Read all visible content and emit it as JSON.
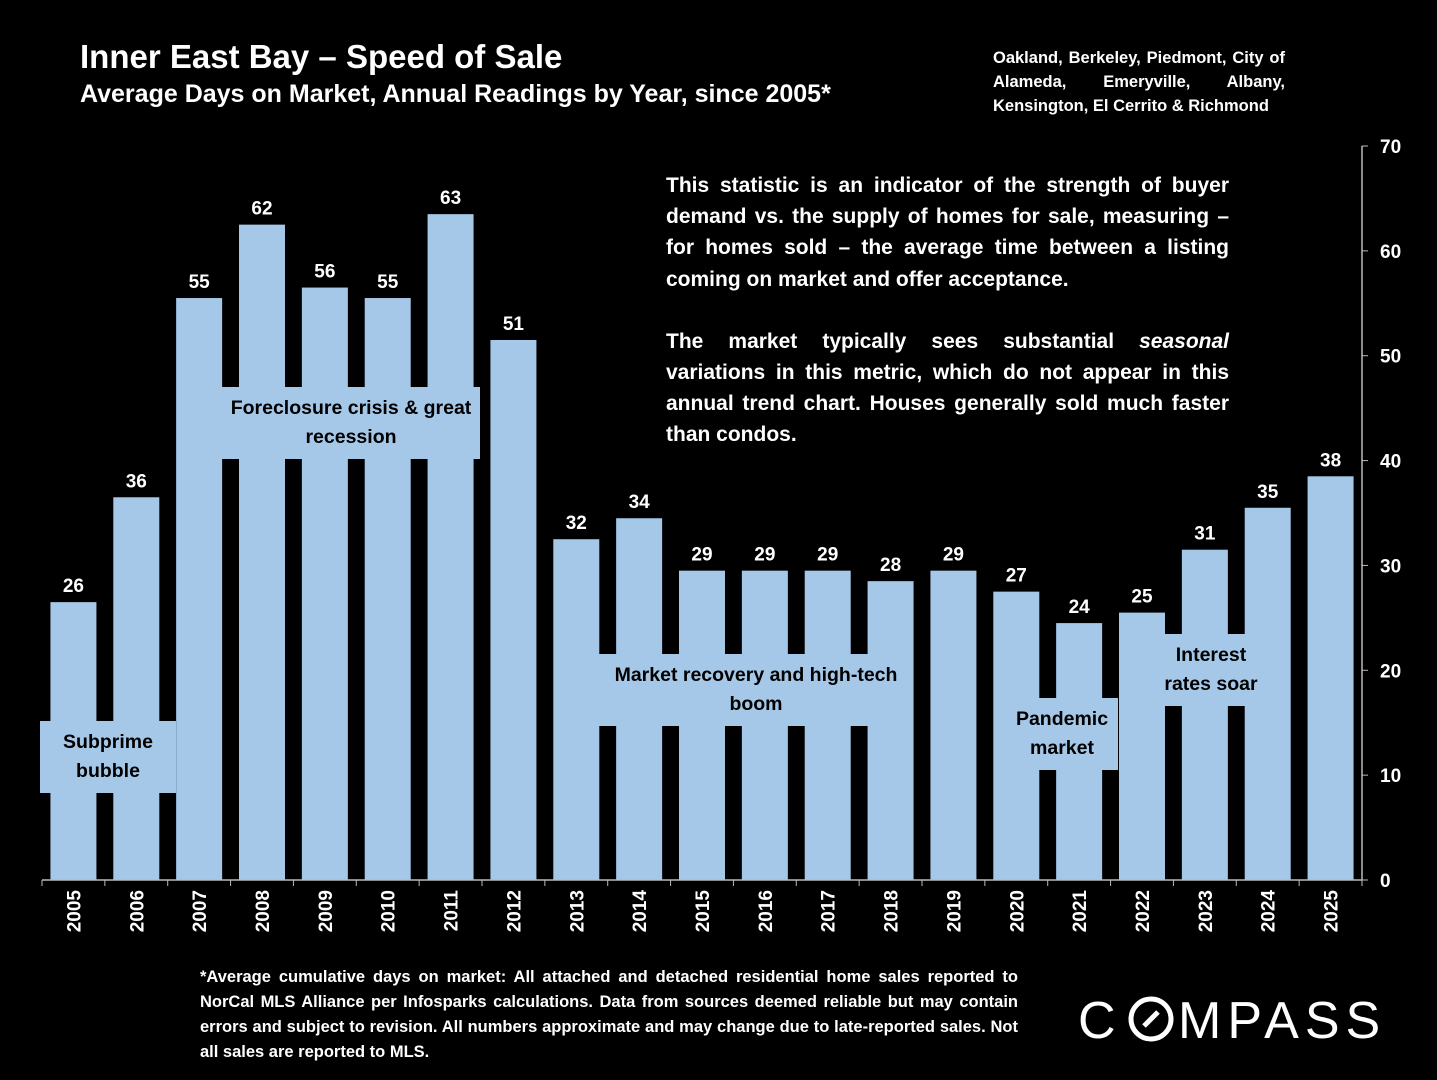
{
  "header": {
    "title": "Inner East Bay – Speed of Sale",
    "subtitle": "Average Days on Market, Annual Readings by Year, since 2005*",
    "region": "Oakland, Berkeley, Piedmont, City of Alameda, Emeryville, Albany, Kensington, El Cerrito & Richmond"
  },
  "note": {
    "p1": "This statistic is an indicator of the strength of buyer demand vs. the supply of homes for sale, measuring – for homes sold – the average time between a listing coming on market and offer acceptance.",
    "p2_before": "The market typically sees substantial ",
    "p2_italic": "seasonal",
    "p2_after": " variations in this metric, which do not appear in this annual trend chart. Houses generally sold much faster than condos."
  },
  "annotations": {
    "subprime": "Subprime bubble",
    "foreclosure": "Foreclosure crisis & great recession",
    "recovery": "Market recovery and high-tech boom",
    "pandemic": "Pandemic market",
    "rates": "Interest rates soar"
  },
  "footnote": "*Average cumulative days on market: All attached and detached residential home sales reported to NorCal MLS Alliance per Infosparks calculations. Data from sources deemed reliable but may contain errors and subject to revision. All numbers approximate and may change due to late-reported sales. Not all sales are reported to MLS.",
  "logo": "COMPASS",
  "colors": {
    "bar": "#a6c8e8",
    "background": "#000000",
    "text": "#ffffff"
  },
  "chart_data": {
    "type": "bar",
    "categories": [
      "2005",
      "2006",
      "2007",
      "2008",
      "2009",
      "2010",
      "2011",
      "2012",
      "2013",
      "2014",
      "2015",
      "2016",
      "2017",
      "2018",
      "2019",
      "2020",
      "2021",
      "2022",
      "2023",
      "2024",
      "2025"
    ],
    "values": [
      26,
      36,
      55,
      62,
      56,
      55,
      63,
      51,
      32,
      34,
      29,
      29,
      29,
      28,
      29,
      27,
      24,
      25,
      31,
      35,
      38
    ],
    "ylim": [
      0,
      70
    ],
    "yticks": [
      0,
      10,
      20,
      30,
      40,
      50,
      60,
      70
    ],
    "y_axis_side": "right",
    "grid": false,
    "data_labels": true
  }
}
